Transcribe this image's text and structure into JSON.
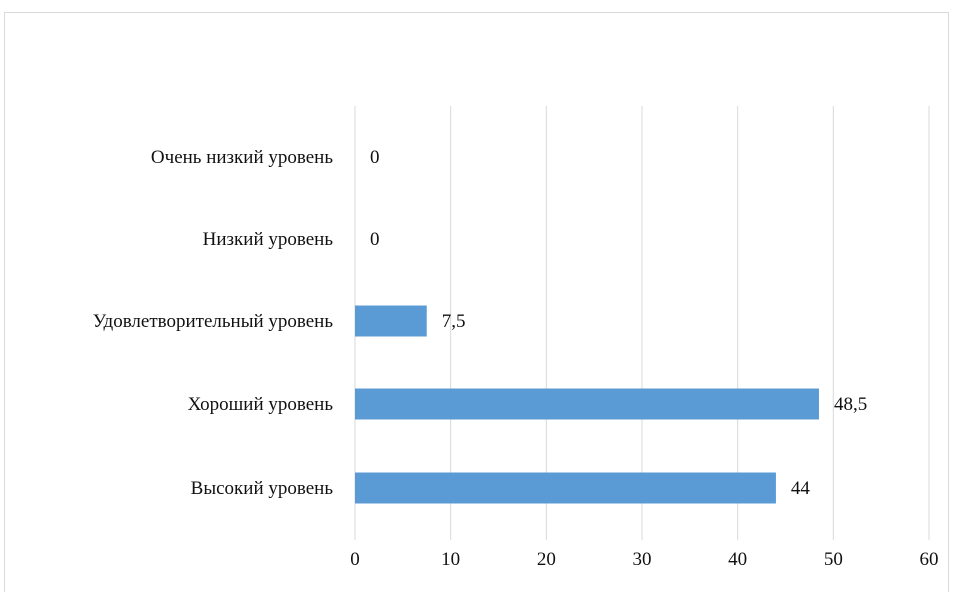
{
  "chart_data": {
    "type": "bar",
    "orientation": "horizontal",
    "categories": [
      "Очень низкий уровень",
      "Низкий уровень",
      "Удовлетворительный уровень",
      "Хороший уровень",
      "Высокий уровень"
    ],
    "values": [
      0,
      0,
      7.5,
      48.5,
      44
    ],
    "value_labels": [
      "0",
      "0",
      "7,5",
      "48,5",
      "44"
    ],
    "xlim": [
      0,
      60
    ],
    "x_ticks": [
      0,
      10,
      20,
      30,
      40,
      50,
      60
    ],
    "x_tick_labels": [
      "0",
      "10",
      "20",
      "30",
      "40",
      "50",
      "60"
    ],
    "title": "",
    "xlabel": "",
    "ylabel": "",
    "grid": "vertical",
    "legend": "none",
    "colors": {
      "bar": "#5b9bd5",
      "grid": "#d9d9d9",
      "frame": "#d9d9d9"
    }
  }
}
